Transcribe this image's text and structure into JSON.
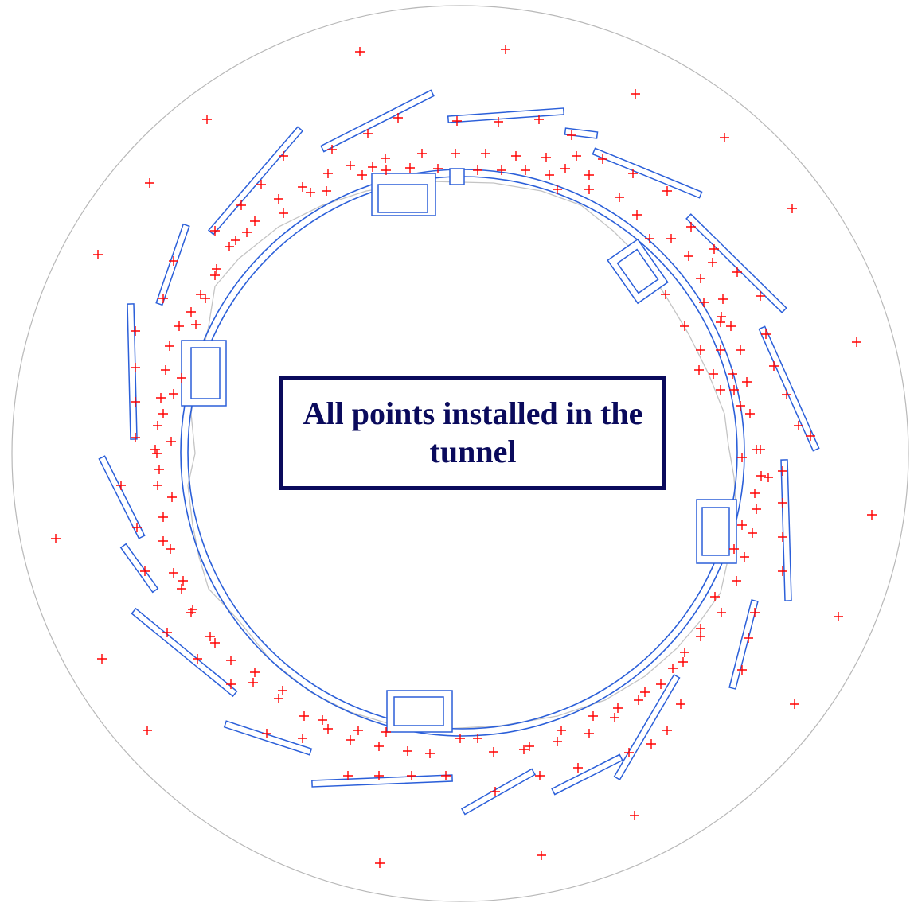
{
  "caption": {
    "text": "All points installed in the tunnel"
  },
  "colors": {
    "outline": "#2b5fd9",
    "marker": "#ff0000",
    "boundary": "#b8b8b8",
    "caption": "#0a0a5c"
  }
}
